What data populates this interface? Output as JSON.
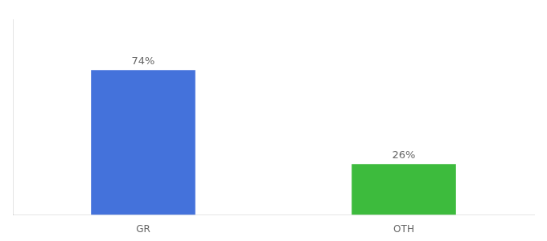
{
  "chart_data": {
    "type": "bar",
    "categories": [
      "GR",
      "OTH"
    ],
    "values": [
      74,
      26
    ],
    "value_labels": [
      "74%",
      "26%"
    ],
    "colors": [
      "#4472db",
      "#3dbb3d"
    ],
    "ylim": [
      0,
      100
    ],
    "grid": false,
    "data_labels": true,
    "tick_labels": "x"
  }
}
